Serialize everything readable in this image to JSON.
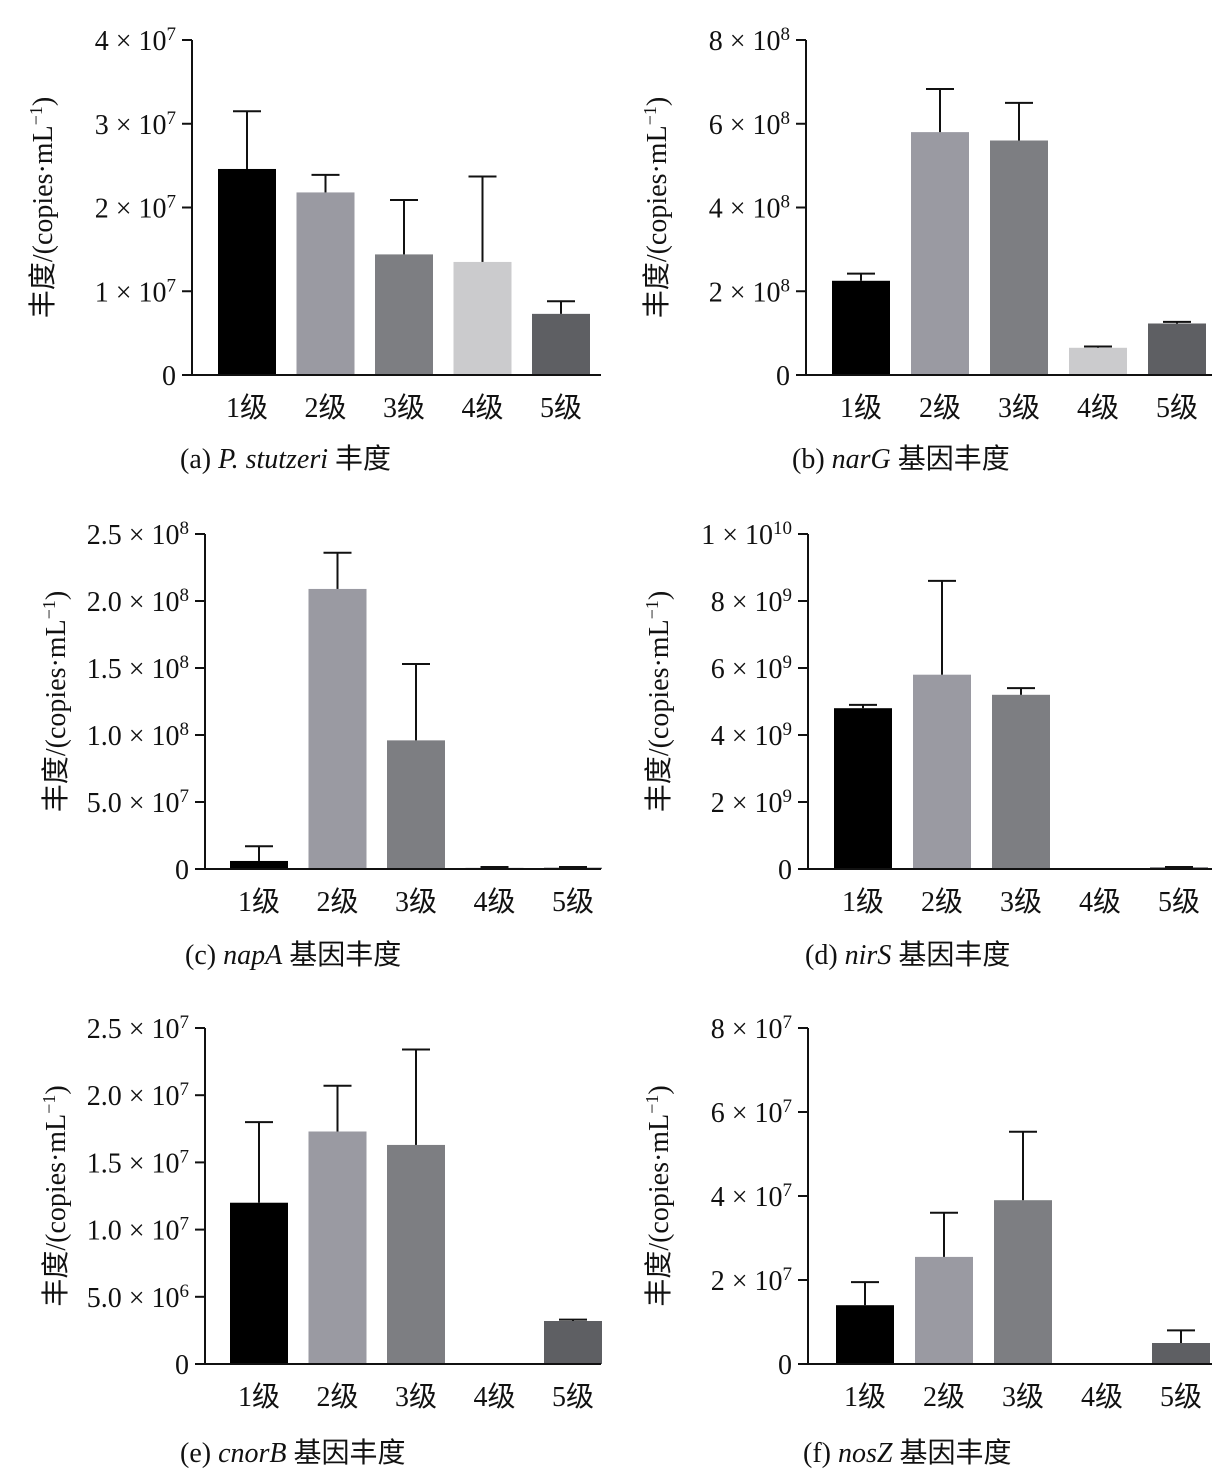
{
  "category_suffix": "级",
  "y_axis_label": "丰度/(copies·mL",
  "y_axis_label_exp": "−1",
  "y_axis_label_close": ")",
  "colors": [
    "#000000",
    "#9a9aa2",
    "#7d7e82",
    "#cbcbcd",
    "#5e5f63"
  ],
  "chart_data": [
    {
      "type": "bar",
      "caption_prefix": "(a)",
      "caption_gene": "P. stutzeri",
      "caption_suffix": "丰度",
      "categories": [
        "1级",
        "2级",
        "3级",
        "4级",
        "5级"
      ],
      "values": [
        24600000,
        21800000,
        14400000,
        13500000,
        7300000
      ],
      "errors": [
        6900000,
        2100000,
        6500000,
        10200000,
        1500000
      ],
      "ylim": [
        0,
        40000000
      ],
      "yticks": [
        {
          "value": 0,
          "mant": "0",
          "exp": ""
        },
        {
          "value": 10000000,
          "mant": "1 × 10",
          "exp": "7"
        },
        {
          "value": 20000000,
          "mant": "2 × 10",
          "exp": "7"
        },
        {
          "value": 30000000,
          "mant": "3 × 10",
          "exp": "7"
        },
        {
          "value": 40000000,
          "mant": "4 × 10",
          "exp": "7"
        }
      ]
    },
    {
      "type": "bar",
      "caption_prefix": "(b)",
      "caption_gene": "narG",
      "caption_suffix": "基因丰度",
      "categories": [
        "1级",
        "2级",
        "3级",
        "4级",
        "5级"
      ],
      "values": [
        225000000,
        580000000,
        560000000,
        65000000,
        123000000
      ],
      "errors": [
        17000000,
        103000000,
        90000000,
        3000000,
        4000000
      ],
      "ylim": [
        0,
        800000000
      ],
      "yticks": [
        {
          "value": 0,
          "mant": "0",
          "exp": ""
        },
        {
          "value": 200000000,
          "mant": "2 × 10",
          "exp": "8"
        },
        {
          "value": 400000000,
          "mant": "4 × 10",
          "exp": "8"
        },
        {
          "value": 600000000,
          "mant": "6 × 10",
          "exp": "8"
        },
        {
          "value": 800000000,
          "mant": "8 × 10",
          "exp": "8"
        }
      ]
    },
    {
      "type": "bar",
      "caption_prefix": "(c)",
      "caption_gene": "napA",
      "caption_suffix": "基因丰度",
      "categories": [
        "1级",
        "2级",
        "3级",
        "4级",
        "5级"
      ],
      "values": [
        6000000,
        209000000,
        96000000,
        1000000,
        1000000
      ],
      "errors": [
        11000000,
        27000000,
        57000000,
        500000,
        500000
      ],
      "ylim": [
        0,
        250000000
      ],
      "yticks": [
        {
          "value": 0,
          "mant": "0",
          "exp": ""
        },
        {
          "value": 50000000,
          "mant": "5.0 × 10",
          "exp": "7"
        },
        {
          "value": 100000000,
          "mant": "1.0 × 10",
          "exp": "8"
        },
        {
          "value": 150000000,
          "mant": "1.5 × 10",
          "exp": "8"
        },
        {
          "value": 200000000,
          "mant": "2.0 × 10",
          "exp": "8"
        },
        {
          "value": 250000000,
          "mant": "2.5 × 10",
          "exp": "8"
        }
      ]
    },
    {
      "type": "bar",
      "caption_prefix": "(d)",
      "caption_gene": "nirS",
      "caption_suffix": "基因丰度",
      "categories": [
        "1级",
        "2级",
        "3级",
        "4级",
        "5级"
      ],
      "values": [
        4800000000,
        5800000000,
        5200000000,
        0,
        50000000
      ],
      "errors": [
        100000000,
        2800000000,
        200000000,
        0,
        10000000
      ],
      "ylim": [
        0,
        10000000000
      ],
      "yticks": [
        {
          "value": 0,
          "mant": "0",
          "exp": ""
        },
        {
          "value": 2000000000,
          "mant": "2 × 10",
          "exp": "9"
        },
        {
          "value": 4000000000,
          "mant": "4 × 10",
          "exp": "9"
        },
        {
          "value": 6000000000,
          "mant": "6 × 10",
          "exp": "9"
        },
        {
          "value": 8000000000,
          "mant": "8 × 10",
          "exp": "9"
        },
        {
          "value": 10000000000,
          "mant": "1 × 10",
          "exp": "10"
        }
      ]
    },
    {
      "type": "bar",
      "caption_prefix": "(e)",
      "caption_gene": "cnorB",
      "caption_suffix": "基因丰度",
      "categories": [
        "1级",
        "2级",
        "3级",
        "4级",
        "5级"
      ],
      "values": [
        12000000,
        17300000,
        16300000,
        0,
        3200000
      ],
      "errors": [
        6000000,
        3400000,
        7100000,
        0,
        100000
      ],
      "ylim": [
        0,
        25000000
      ],
      "yticks": [
        {
          "value": 0,
          "mant": "0",
          "exp": ""
        },
        {
          "value": 5000000,
          "mant": "5.0 × 10",
          "exp": "6"
        },
        {
          "value": 10000000,
          "mant": "1.0 × 10",
          "exp": "7"
        },
        {
          "value": 15000000,
          "mant": "1.5 × 10",
          "exp": "7"
        },
        {
          "value": 20000000,
          "mant": "2.0 × 10",
          "exp": "7"
        },
        {
          "value": 25000000,
          "mant": "2.5 × 10",
          "exp": "7"
        }
      ]
    },
    {
      "type": "bar",
      "caption_prefix": "(f)",
      "caption_gene": "nosZ",
      "caption_suffix": "基因丰度",
      "categories": [
        "1级",
        "2级",
        "3级",
        "4级",
        "5级"
      ],
      "values": [
        14000000,
        25500000,
        39000000,
        0,
        5000000
      ],
      "errors": [
        5500000,
        10500000,
        16300000,
        0,
        3000000
      ],
      "ylim": [
        0,
        80000000
      ],
      "yticks": [
        {
          "value": 0,
          "mant": "0",
          "exp": ""
        },
        {
          "value": 20000000,
          "mant": "2 × 10",
          "exp": "7"
        },
        {
          "value": 40000000,
          "mant": "4 × 10",
          "exp": "7"
        },
        {
          "value": 60000000,
          "mant": "6 × 10",
          "exp": "7"
        },
        {
          "value": 80000000,
          "mant": "8 × 10",
          "exp": "7"
        }
      ]
    }
  ]
}
